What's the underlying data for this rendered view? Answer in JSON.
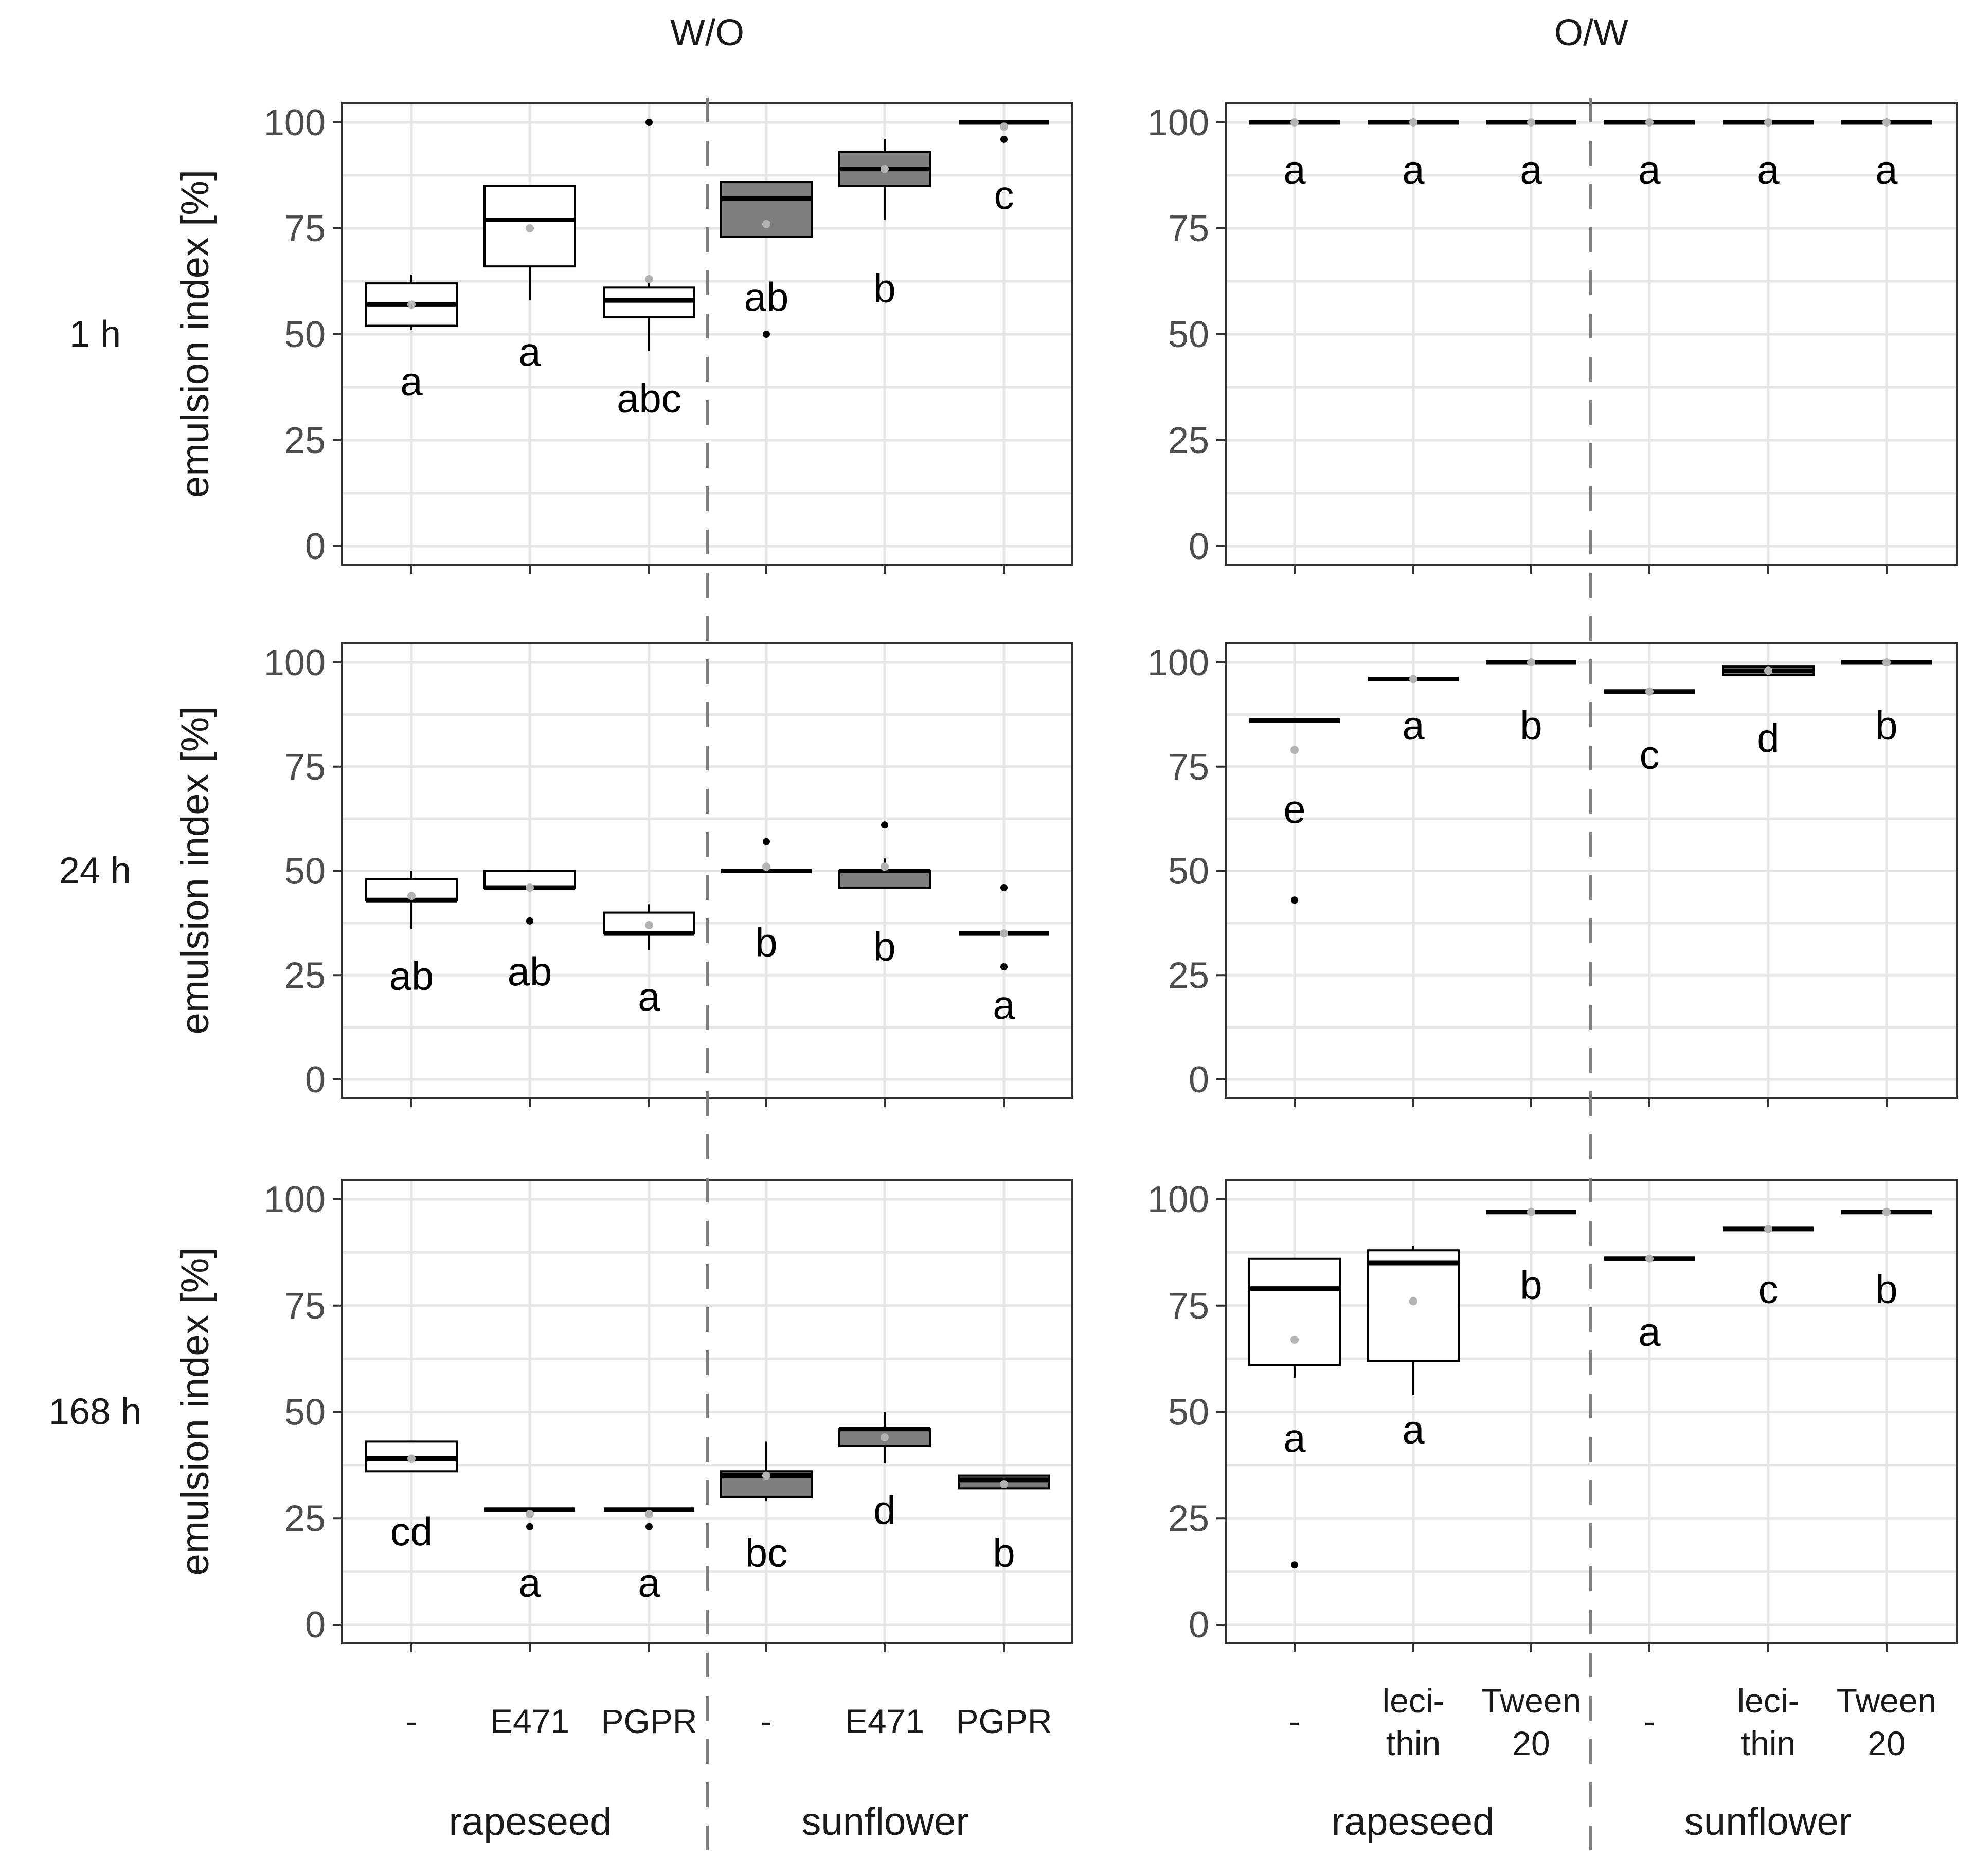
{
  "chart_data": {
    "type": "box",
    "column_titles": [
      "W/O",
      "O/W"
    ],
    "row_labels": [
      "1 h",
      "24 h",
      "168 h"
    ],
    "ylabel": "emulsion index [%]",
    "ylim": [
      0,
      100
    ],
    "yticks": [
      "0",
      "25",
      "50",
      "75",
      "100"
    ],
    "colors": {
      "rapeseed_fill": "#ffffff",
      "sunflower_fill": "#7f7f7f",
      "mean_marker": "#b3b3b3",
      "separator": "#7f7f7f"
    },
    "columns": [
      {
        "title": "W/O",
        "categories": [
          {
            "lines": [
              "-"
            ]
          },
          {
            "lines": [
              "E471"
            ]
          },
          {
            "lines": [
              "PGPR"
            ]
          },
          {
            "lines": [
              "-"
            ]
          },
          {
            "lines": [
              "E471"
            ]
          },
          {
            "lines": [
              "PGPR"
            ]
          }
        ],
        "groups": [
          "rapeseed",
          "sunflower"
        ],
        "panels": [
          {
            "time": "1 h",
            "boxes": [
              {
                "q1": 52,
                "median": 57,
                "q3": 62,
                "wlo": 51,
                "whi": 64,
                "mean": 57,
                "outliers": [],
                "sig": "a",
                "sig_y": 39
              },
              {
                "q1": 66,
                "median": 77,
                "q3": 85,
                "wlo": 58,
                "whi": 85,
                "mean": 75,
                "outliers": [],
                "sig": "a",
                "sig_y": 46
              },
              {
                "q1": 54,
                "median": 58,
                "q3": 61,
                "wlo": 46,
                "whi": 62,
                "mean": 63,
                "outliers": [
                  100
                ],
                "sig": "abc",
                "sig_y": 35
              },
              {
                "q1": 73,
                "median": 82,
                "q3": 86,
                "wlo": 73,
                "whi": 86,
                "mean": 76,
                "outliers": [
                  50
                ],
                "sig": "ab",
                "sig_y": 59
              },
              {
                "q1": 85,
                "median": 89,
                "q3": 93,
                "wlo": 77,
                "whi": 96,
                "mean": 89,
                "outliers": [],
                "sig": "b",
                "sig_y": 61
              },
              {
                "q1": 100,
                "median": 100,
                "q3": 100,
                "wlo": 100,
                "whi": 100,
                "mean": 99,
                "outliers": [
                  96
                ],
                "sig": "c",
                "sig_y": 83
              }
            ]
          },
          {
            "time": "24 h",
            "boxes": [
              {
                "q1": 43,
                "median": 43,
                "q3": 48,
                "wlo": 36,
                "whi": 50,
                "mean": 44,
                "outliers": [],
                "sig": "ab",
                "sig_y": 25
              },
              {
                "q1": 46,
                "median": 46,
                "q3": 50,
                "wlo": 46,
                "whi": 50,
                "mean": 46,
                "outliers": [
                  38
                ],
                "sig": "ab",
                "sig_y": 26
              },
              {
                "q1": 35,
                "median": 35,
                "q3": 40,
                "wlo": 31,
                "whi": 42,
                "mean": 37,
                "outliers": [],
                "sig": "a",
                "sig_y": 20
              },
              {
                "q1": 50,
                "median": 50,
                "q3": 50,
                "wlo": 50,
                "whi": 50,
                "mean": 51,
                "outliers": [
                  57
                ],
                "sig": "b",
                "sig_y": 33
              },
              {
                "q1": 46,
                "median": 50,
                "q3": 50,
                "wlo": 46,
                "whi": 53,
                "mean": 51,
                "outliers": [
                  61
                ],
                "sig": "b",
                "sig_y": 32
              },
              {
                "q1": 35,
                "median": 35,
                "q3": 35,
                "wlo": 35,
                "whi": 35,
                "mean": 35,
                "outliers": [
                  46,
                  27
                ],
                "sig": "a",
                "sig_y": 18
              }
            ]
          },
          {
            "time": "168 h",
            "boxes": [
              {
                "q1": 36,
                "median": 39,
                "q3": 43,
                "wlo": 36,
                "whi": 43,
                "mean": 39,
                "outliers": [],
                "sig": "cd",
                "sig_y": 22
              },
              {
                "q1": 27,
                "median": 27,
                "q3": 27,
                "wlo": 27,
                "whi": 27,
                "mean": 26,
                "outliers": [
                  23
                ],
                "sig": "a",
                "sig_y": 10
              },
              {
                "q1": 27,
                "median": 27,
                "q3": 27,
                "wlo": 27,
                "whi": 27,
                "mean": 26,
                "outliers": [
                  23
                ],
                "sig": "a",
                "sig_y": 10
              },
              {
                "q1": 30,
                "median": 35,
                "q3": 36,
                "wlo": 29,
                "whi": 43,
                "mean": 35,
                "outliers": [],
                "sig": "bc",
                "sig_y": 17
              },
              {
                "q1": 42,
                "median": 46,
                "q3": 46,
                "wlo": 38,
                "whi": 50,
                "mean": 44,
                "outliers": [],
                "sig": "d",
                "sig_y": 27
              },
              {
                "q1": 32,
                "median": 34,
                "q3": 35,
                "wlo": 32,
                "whi": 35,
                "mean": 33,
                "outliers": [],
                "sig": "b",
                "sig_y": 17
              }
            ]
          }
        ]
      },
      {
        "title": "O/W",
        "categories": [
          {
            "lines": [
              "-"
            ]
          },
          {
            "lines": [
              "leci-",
              "thin"
            ]
          },
          {
            "lines": [
              "Tween",
              "20"
            ]
          },
          {
            "lines": [
              "-"
            ]
          },
          {
            "lines": [
              "leci-",
              "thin"
            ]
          },
          {
            "lines": [
              "Tween",
              "20"
            ]
          }
        ],
        "groups": [
          "rapeseed",
          "sunflower"
        ],
        "panels": [
          {
            "time": "1 h",
            "boxes": [
              {
                "q1": 100,
                "median": 100,
                "q3": 100,
                "wlo": 100,
                "whi": 100,
                "mean": 100,
                "outliers": [],
                "sig": "a",
                "sig_y": 89
              },
              {
                "q1": 100,
                "median": 100,
                "q3": 100,
                "wlo": 100,
                "whi": 100,
                "mean": 100,
                "outliers": [],
                "sig": "a",
                "sig_y": 89
              },
              {
                "q1": 100,
                "median": 100,
                "q3": 100,
                "wlo": 100,
                "whi": 100,
                "mean": 100,
                "outliers": [],
                "sig": "a",
                "sig_y": 89
              },
              {
                "q1": 100,
                "median": 100,
                "q3": 100,
                "wlo": 100,
                "whi": 100,
                "mean": 100,
                "outliers": [],
                "sig": "a",
                "sig_y": 89
              },
              {
                "q1": 100,
                "median": 100,
                "q3": 100,
                "wlo": 100,
                "whi": 100,
                "mean": 100,
                "outliers": [],
                "sig": "a",
                "sig_y": 89
              },
              {
                "q1": 100,
                "median": 100,
                "q3": 100,
                "wlo": 100,
                "whi": 100,
                "mean": 100,
                "outliers": [],
                "sig": "a",
                "sig_y": 89
              }
            ]
          },
          {
            "time": "24 h",
            "boxes": [
              {
                "q1": 86,
                "median": 86,
                "q3": 86,
                "wlo": 86,
                "whi": 86,
                "mean": 79,
                "outliers": [
                  43
                ],
                "sig": "e",
                "sig_y": 65
              },
              {
                "q1": 96,
                "median": 96,
                "q3": 96,
                "wlo": 96,
                "whi": 96,
                "mean": 96,
                "outliers": [],
                "sig": "a",
                "sig_y": 85
              },
              {
                "q1": 100,
                "median": 100,
                "q3": 100,
                "wlo": 100,
                "whi": 100,
                "mean": 100,
                "outliers": [],
                "sig": "b",
                "sig_y": 85
              },
              {
                "q1": 93,
                "median": 93,
                "q3": 93,
                "wlo": 93,
                "whi": 93,
                "mean": 93,
                "outliers": [],
                "sig": "c",
                "sig_y": 78
              },
              {
                "q1": 97,
                "median": 98,
                "q3": 99,
                "wlo": 97,
                "whi": 99,
                "mean": 98,
                "outliers": [],
                "sig": "d",
                "sig_y": 82
              },
              {
                "q1": 100,
                "median": 100,
                "q3": 100,
                "wlo": 100,
                "whi": 100,
                "mean": 100,
                "outliers": [],
                "sig": "b",
                "sig_y": 85
              }
            ]
          },
          {
            "time": "168 h",
            "boxes": [
              {
                "q1": 61,
                "median": 79,
                "q3": 86,
                "wlo": 58,
                "whi": 86,
                "mean": 67,
                "outliers": [
                  14
                ],
                "sig": "a",
                "sig_y": 44
              },
              {
                "q1": 62,
                "median": 85,
                "q3": 88,
                "wlo": 54,
                "whi": 89,
                "mean": 76,
                "outliers": [],
                "sig": "a",
                "sig_y": 46
              },
              {
                "q1": 97,
                "median": 97,
                "q3": 97,
                "wlo": 97,
                "whi": 97,
                "mean": 97,
                "outliers": [],
                "sig": "b",
                "sig_y": 80
              },
              {
                "q1": 86,
                "median": 86,
                "q3": 86,
                "wlo": 86,
                "whi": 86,
                "mean": 86,
                "outliers": [],
                "sig": "a",
                "sig_y": 69
              },
              {
                "q1": 93,
                "median": 93,
                "q3": 93,
                "wlo": 93,
                "whi": 93,
                "mean": 93,
                "outliers": [],
                "sig": "c",
                "sig_y": 79
              },
              {
                "q1": 97,
                "median": 97,
                "q3": 97,
                "wlo": 97,
                "whi": 97,
                "mean": 97,
                "outliers": [],
                "sig": "b",
                "sig_y": 79
              }
            ]
          }
        ]
      }
    ]
  }
}
